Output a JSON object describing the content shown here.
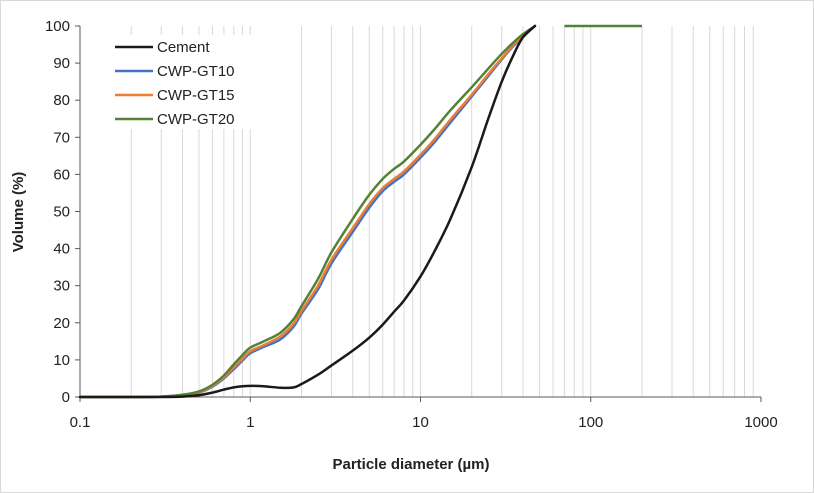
{
  "chart_data": {
    "type": "line",
    "xlabel": "Particle diameter (µm)",
    "ylabel": "Volume (%)",
    "xscale": "log",
    "xlim": [
      0.1,
      1000
    ],
    "ylim": [
      0,
      100
    ],
    "x_ticks": [
      "0.1",
      "1",
      "10",
      "100",
      "1000"
    ],
    "y_ticks": [
      "0",
      "10",
      "20",
      "30",
      "40",
      "50",
      "60",
      "70",
      "80",
      "90",
      "100"
    ],
    "grid": "vertical minor log grid",
    "legend_position": "top-left",
    "series": [
      {
        "name": "Cement",
        "color": "#1a1a1a",
        "x": [
          0.1,
          0.2,
          0.3,
          0.4,
          0.5,
          0.6,
          0.7,
          0.8,
          0.9,
          1.0,
          1.2,
          1.5,
          1.8,
          2.0,
          2.5,
          3,
          4,
          5,
          6,
          7,
          8,
          10,
          12,
          15,
          20,
          25,
          30,
          35,
          40,
          47
        ],
        "y": [
          0,
          0,
          0,
          0.1,
          0.5,
          1.2,
          2.0,
          2.6,
          2.9,
          3.0,
          2.9,
          2.5,
          2.6,
          3.5,
          6,
          8.5,
          12.5,
          16,
          19.5,
          23,
          26,
          32.5,
          39,
          48,
          62,
          75,
          85,
          92,
          97,
          100
        ]
      },
      {
        "name": "CWP-GT10",
        "color": "#4472c4",
        "x": [
          0.1,
          0.2,
          0.3,
          0.4,
          0.5,
          0.6,
          0.7,
          0.8,
          0.9,
          1.0,
          1.2,
          1.5,
          1.8,
          2.0,
          2.5,
          3,
          4,
          5,
          6,
          7,
          8,
          10,
          12,
          15,
          20,
          25,
          30,
          35,
          40,
          47
        ],
        "y": [
          0,
          0,
          0.1,
          0.5,
          1.2,
          2.8,
          5.0,
          7.5,
          9.8,
          11.8,
          13.5,
          15.5,
          19,
          22.5,
          29,
          36,
          44.5,
          51,
          55.5,
          58,
          60,
          64.5,
          68.5,
          74,
          81,
          86.5,
          91,
          94.5,
          97,
          100
        ]
      },
      {
        "name": "CWP-GT15",
        "color": "#ed7d31",
        "x": [
          0.1,
          0.2,
          0.3,
          0.4,
          0.5,
          0.6,
          0.7,
          0.8,
          0.9,
          1.0,
          1.2,
          1.5,
          1.8,
          2.0,
          2.5,
          3,
          4,
          5,
          6,
          7,
          8,
          10,
          12,
          15,
          20,
          25,
          30,
          35,
          40,
          47
        ],
        "y": [
          0,
          0,
          0.1,
          0.5,
          1.3,
          3.0,
          5.3,
          8.0,
          10.3,
          12.3,
          14.0,
          16.3,
          19.8,
          23.2,
          30,
          37,
          45.5,
          52,
          56.3,
          58.8,
          60.8,
          65.3,
          69.3,
          74.8,
          81.5,
          87,
          91.3,
          94.8,
          97.2,
          100
        ]
      },
      {
        "name": "CWP-GT20",
        "color": "#548235",
        "x": [
          0.1,
          0.2,
          0.3,
          0.4,
          0.5,
          0.6,
          0.7,
          0.8,
          0.9,
          1.0,
          1.2,
          1.5,
          1.8,
          2.0,
          2.5,
          3,
          4,
          5,
          6,
          7,
          8,
          10,
          12,
          15,
          20,
          25,
          30,
          35,
          40,
          47
        ],
        "y": [
          0,
          0,
          0.1,
          0.6,
          1.5,
          3.3,
          5.8,
          8.8,
          11.3,
          13.3,
          15.0,
          17.3,
          21,
          24.5,
          31.8,
          39,
          48,
          54.5,
          58.8,
          61.5,
          63.5,
          68,
          72,
          77.3,
          83.5,
          88.5,
          92.5,
          95.5,
          97.8,
          100
        ]
      }
    ],
    "flat_segment": {
      "x": [
        70,
        200
      ],
      "y": 100,
      "color": "#548235"
    }
  }
}
